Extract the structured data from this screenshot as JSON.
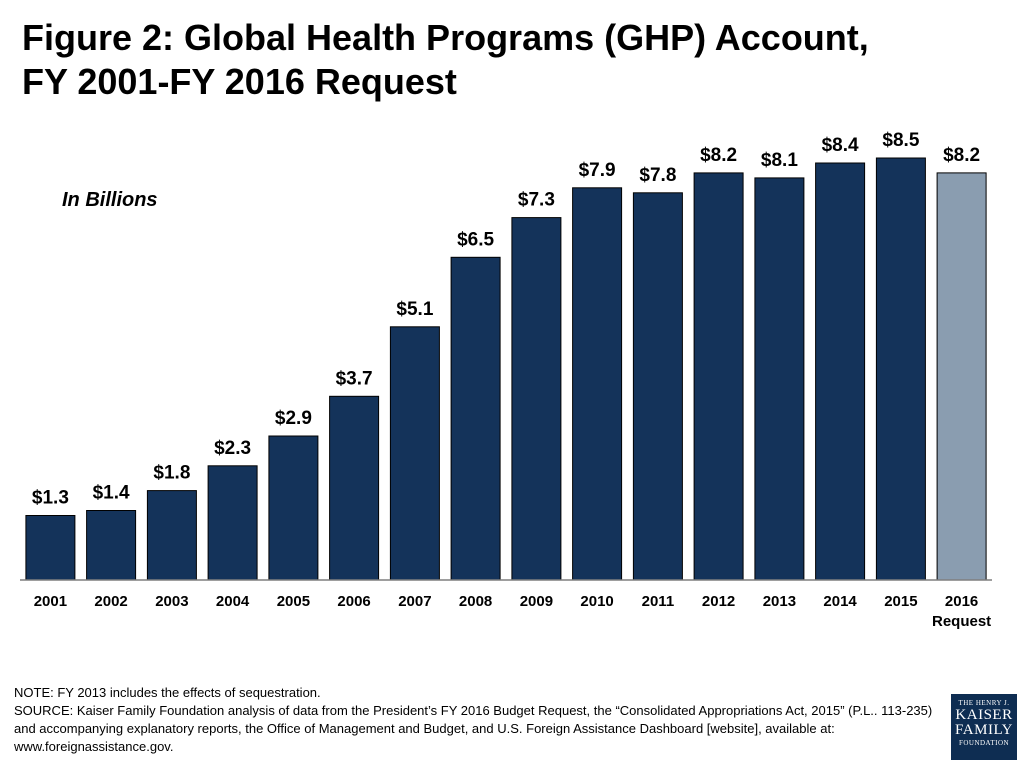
{
  "title": {
    "line1": "Figure 2: Global Health Programs (GHP) Account,",
    "line2": "FY 2001-FY 2016 Request"
  },
  "unit_note": "In Billions",
  "chart_data": {
    "type": "bar",
    "categories": [
      "2001",
      "2002",
      "2003",
      "2004",
      "2005",
      "2006",
      "2007",
      "2008",
      "2009",
      "2010",
      "2011",
      "2012",
      "2013",
      "2014",
      "2015",
      "2016\nRequest"
    ],
    "values": [
      1.3,
      1.4,
      1.8,
      2.3,
      2.9,
      3.7,
      5.1,
      6.5,
      7.3,
      7.9,
      7.8,
      8.2,
      8.1,
      8.4,
      8.5,
      8.2
    ],
    "data_labels": [
      "$1.3",
      "$1.4",
      "$1.8",
      "$2.3",
      "$2.9",
      "$3.7",
      "$5.1",
      "$6.5",
      "$7.3",
      "$7.9",
      "$7.8",
      "$8.2",
      "$8.1",
      "$8.4",
      "$8.5",
      "$8.2"
    ],
    "ylim": [
      0,
      8.5
    ],
    "grid": false,
    "legend": "none",
    "colors": {
      "bar": "#14335a",
      "bar_request": "#8a9db0",
      "axis": "#7f7f7f"
    }
  },
  "footer": {
    "note": "NOTE: FY 2013 includes the effects of sequestration.",
    "source_lines": [
      "SOURCE: Kaiser Family Foundation analysis of data from the President’s FY 2016 Budget Request, the “Consolidated Appropriations Act, 2015” (P.L.. 113-235)",
      "and accompanying explanatory reports, the Office of Management and Budget, and U.S. Foreign Assistance Dashboard [website], available at:",
      "www.foreignassistance.gov."
    ]
  },
  "logo": {
    "line1": "THE HENRY J.",
    "line2": "KAISER",
    "line3": "FAMILY",
    "line4": "FOUNDATION"
  }
}
